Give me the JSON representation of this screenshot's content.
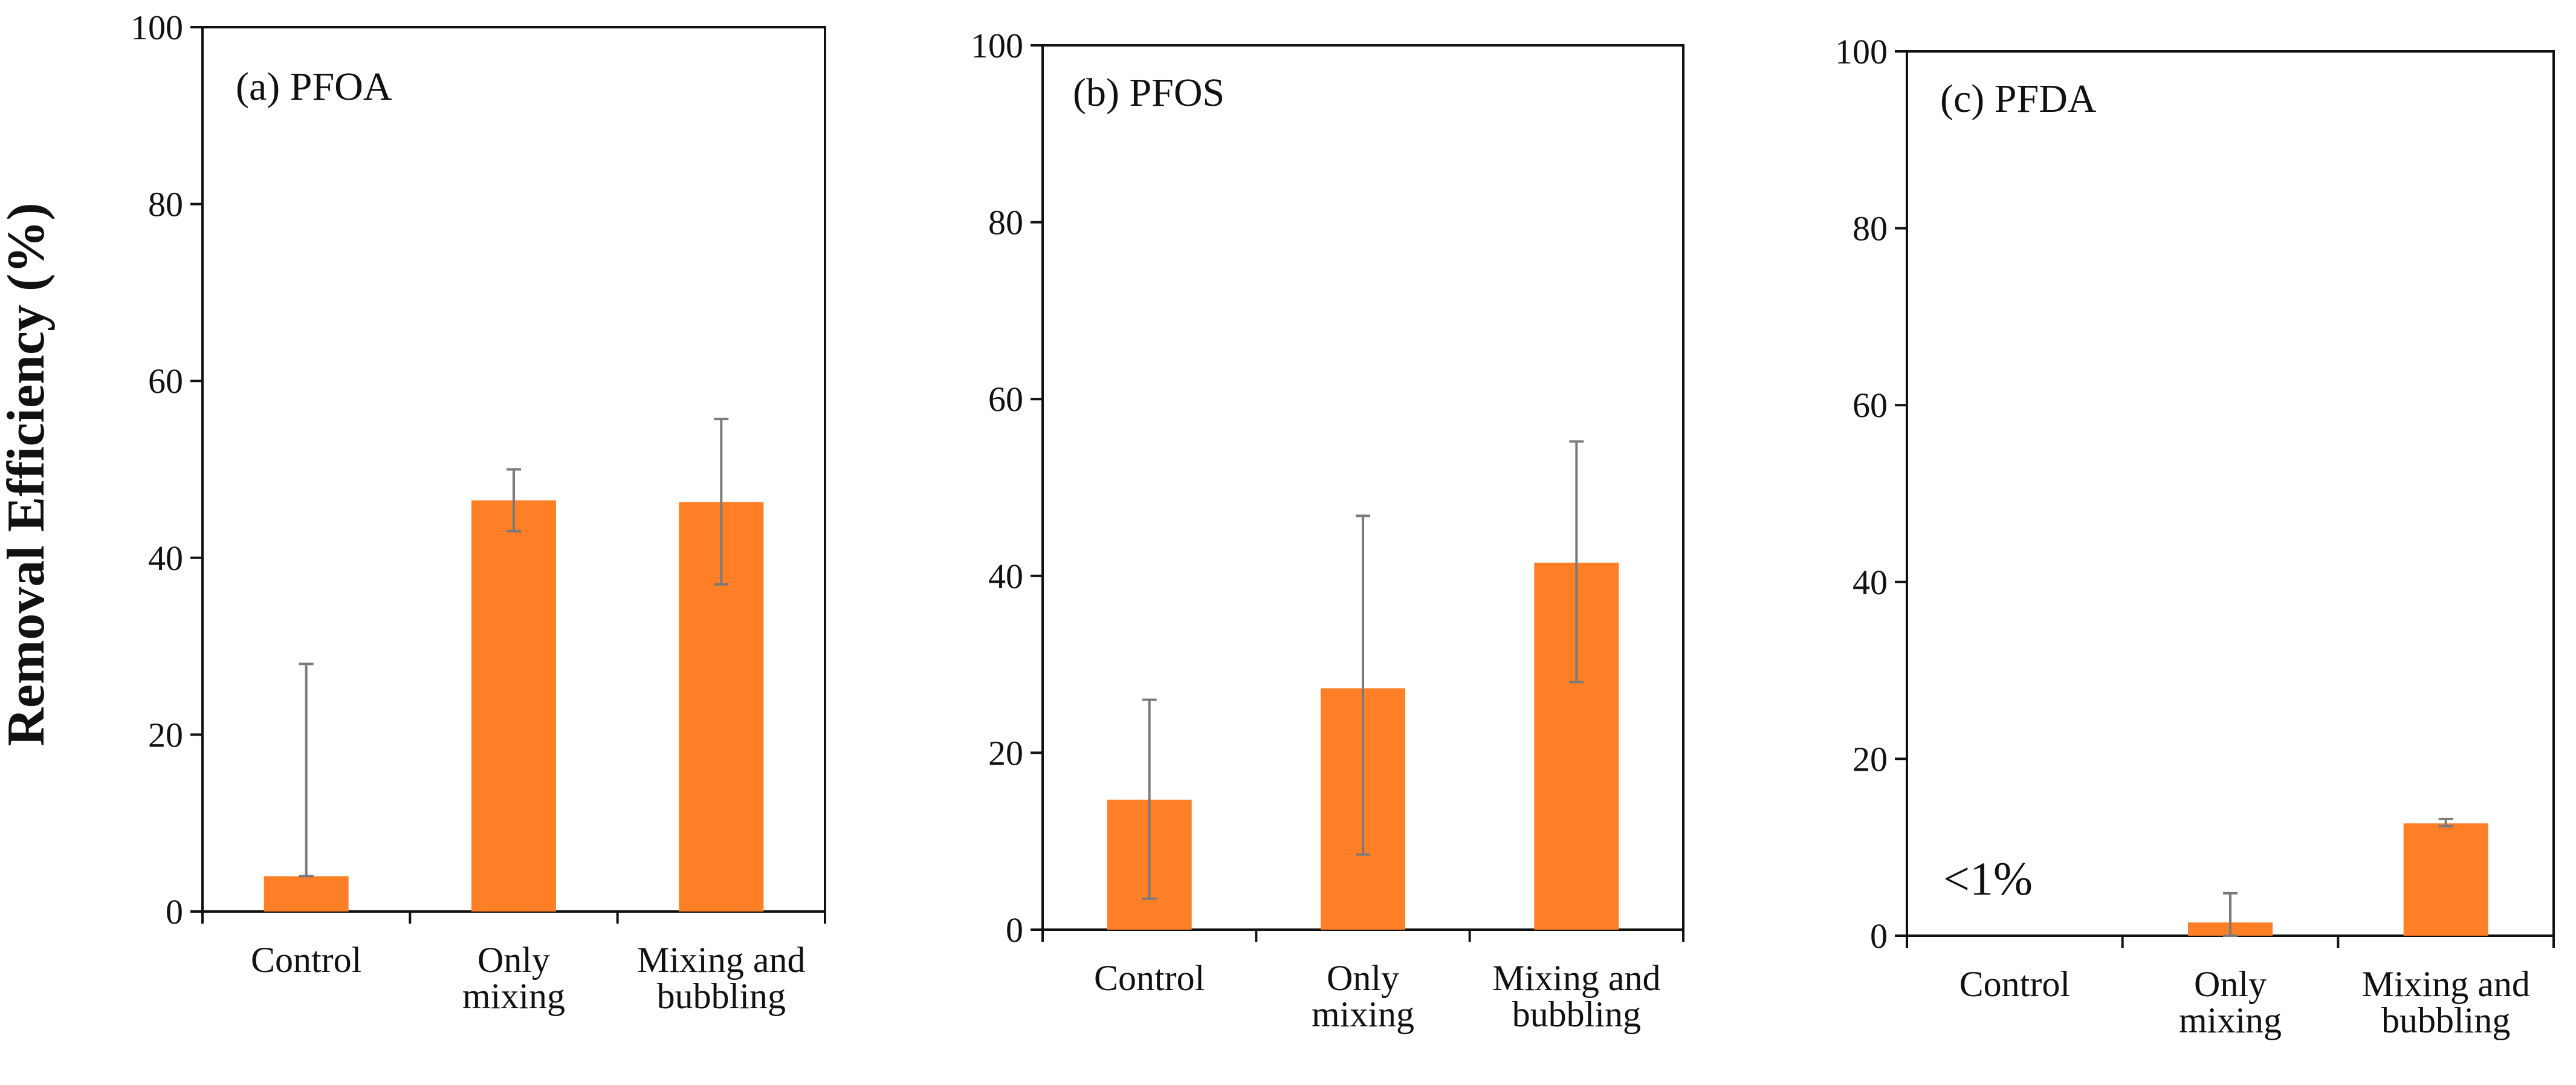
{
  "chart_data": [
    {
      "type": "bar",
      "title": "(a) PFOA",
      "categories": [
        [
          "Control"
        ],
        [
          "Only",
          "mixing"
        ],
        [
          "Mixing and",
          "bubbling"
        ]
      ],
      "values": [
        4,
        46.5,
        46.3
      ],
      "errors": [
        [
          4,
          28
        ],
        [
          43,
          50
        ],
        [
          37,
          55.7
        ]
      ],
      "ylim": [
        0,
        100
      ],
      "yticks": [
        "0",
        "20",
        "40",
        "60",
        "80",
        "100"
      ],
      "annotation": ""
    },
    {
      "type": "bar",
      "title": "(b) PFOS",
      "categories": [
        [
          "Control"
        ],
        [
          "Only",
          "mixing"
        ],
        [
          "Mixing and",
          "bubbling"
        ]
      ],
      "values": [
        14.7,
        27.3,
        41.5
      ],
      "errors": [
        [
          3.5,
          26
        ],
        [
          8.5,
          46.8
        ],
        [
          28,
          55.2
        ]
      ],
      "ylim": [
        0,
        100
      ],
      "yticks": [
        "0",
        "20",
        "40",
        "60",
        "80",
        "100"
      ],
      "annotation": ""
    },
    {
      "type": "bar",
      "title": "(c) PFDA",
      "categories": [
        [
          "Control"
        ],
        [
          "Only",
          "mixing"
        ],
        [
          "Mixing and",
          "bubbling"
        ]
      ],
      "values": [
        0,
        1.5,
        12.7
      ],
      "errors": [
        [
          0,
          0
        ],
        [
          0,
          4.8
        ],
        [
          12.4,
          13.2
        ]
      ],
      "ylim": [
        0,
        100
      ],
      "yticks": [
        "0",
        "20",
        "40",
        "60",
        "80",
        "100"
      ],
      "annotation": "<1%"
    }
  ],
  "ylabel": "Removal Efficiency (%)",
  "colors": {
    "bar": "#FF7F27",
    "axis": "#111111",
    "errorbar": "#7a7a7a"
  }
}
